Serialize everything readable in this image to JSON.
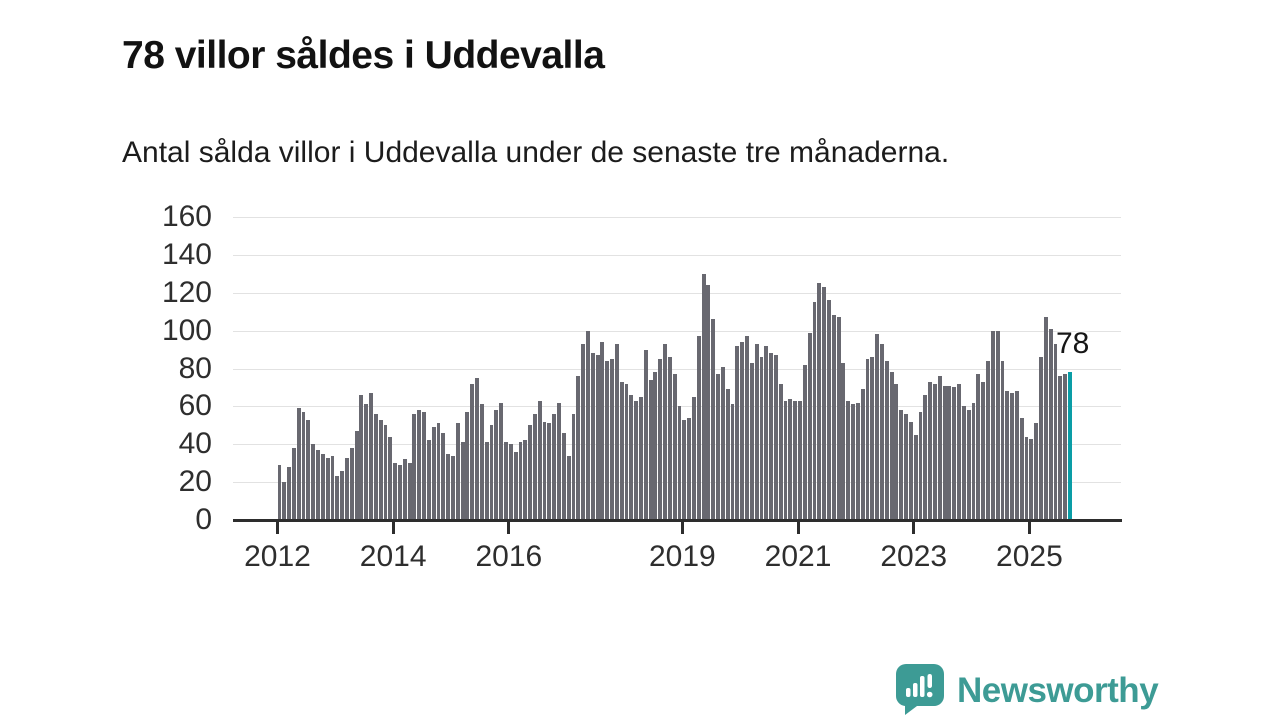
{
  "header": {
    "title": "78 villor såldes i Uddevalla",
    "subtitle": "Antal sålda villor i Uddevalla under de senaste tre månaderna."
  },
  "chart_data": {
    "type": "bar",
    "title": "78 villor såldes i Uddevalla",
    "xlabel": "",
    "ylabel": "",
    "x_start": "2012-01",
    "x_freq": "monthly",
    "values": [
      29,
      20,
      28,
      38,
      59,
      57,
      53,
      40,
      37,
      35,
      33,
      34,
      23,
      26,
      33,
      38,
      47,
      66,
      61,
      67,
      56,
      53,
      50,
      44,
      30,
      29,
      32,
      30,
      56,
      58,
      57,
      42,
      49,
      51,
      46,
      35,
      34,
      51,
      41,
      57,
      72,
      75,
      61,
      41,
      50,
      58,
      62,
      41,
      40,
      36,
      41,
      42,
      50,
      56,
      63,
      52,
      51,
      56,
      62,
      46,
      34,
      56,
      76,
      93,
      100,
      88,
      87,
      94,
      84,
      85,
      93,
      73,
      72,
      66,
      63,
      65,
      90,
      74,
      78,
      85,
      93,
      86,
      77,
      60,
      53,
      54,
      65,
      97,
      130,
      124,
      106,
      77,
      81,
      69,
      61,
      92,
      94,
      97,
      83,
      93,
      86,
      92,
      88,
      87,
      72,
      63,
      64,
      63,
      63,
      82,
      99,
      115,
      125,
      123,
      116,
      108,
      107,
      83,
      63,
      61,
      62,
      69,
      85,
      86,
      98,
      93,
      84,
      78,
      72,
      58,
      56,
      52,
      45,
      57,
      66,
      73,
      72,
      76,
      71,
      71,
      70,
      72,
      60,
      58,
      62,
      77,
      73,
      84,
      100,
      100,
      84,
      68,
      67,
      68,
      54,
      44,
      43,
      51,
      86,
      107,
      101,
      93,
      76,
      77,
      78
    ],
    "highlight": {
      "index": 164,
      "value": 78,
      "label": "78"
    },
    "ylim": [
      0,
      160
    ],
    "yticks": [
      0,
      20,
      40,
      60,
      80,
      100,
      120,
      140,
      160
    ],
    "xticks": [
      {
        "label": "2012",
        "index": 0
      },
      {
        "label": "2014",
        "index": 24
      },
      {
        "label": "2016",
        "index": 48
      },
      {
        "label": "2019",
        "index": 84
      },
      {
        "label": "2021",
        "index": 108
      },
      {
        "label": "2023",
        "index": 132
      },
      {
        "label": "2025",
        "index": 156
      }
    ],
    "grid": "horizontal",
    "legend": "none",
    "bar_color": "#686870",
    "highlight_color": "#0a9da6"
  },
  "annotation": {
    "label": "78"
  },
  "footer": {
    "brand": "Newsworthy",
    "brand_color": "#3d9b95",
    "logo_icon": "newsworthy-speech-bubble-chart-icon"
  }
}
